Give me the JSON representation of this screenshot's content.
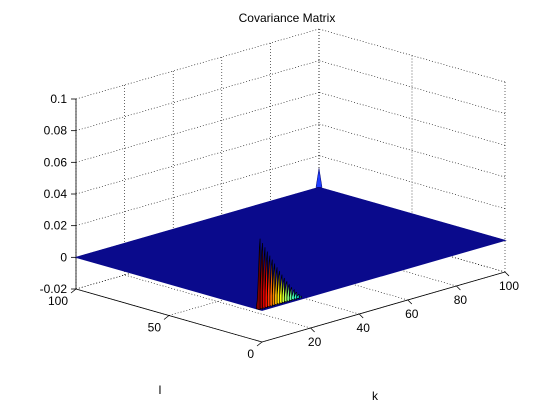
{
  "chart_data": {
    "type": "surface",
    "title": "Covariance Matrix",
    "xlabel": "k",
    "ylabel": "l",
    "zlabel": "",
    "xlim": [
      0,
      100
    ],
    "ylim": [
      0,
      100
    ],
    "zlim": [
      -0.02,
      0.1
    ],
    "x_ticks": [
      "20",
      "40",
      "60",
      "80",
      "100"
    ],
    "x_tick_values": [
      20,
      40,
      60,
      80,
      100
    ],
    "y_ticks": [
      "0",
      "50",
      "100"
    ],
    "y_tick_values": [
      0,
      50,
      100
    ],
    "z_ticks": [
      "-0.02",
      "0",
      "0.02",
      "0.04",
      "0.06",
      "0.08",
      "0.1"
    ],
    "z_tick_values": [
      -0.02,
      0,
      0.02,
      0.04,
      0.06,
      0.08,
      0.1
    ],
    "grid": true,
    "colormap": "jet",
    "base_value": 0,
    "ridge": {
      "description": "covariance concentrated near l = 0 at k ≈ 0..18; peak value ~0.045 at k=l=0",
      "peak_value": 0.045,
      "peak_k": 0,
      "peak_l": 0,
      "extent_k": 18,
      "extent_l": 2
    },
    "secondary_spike": {
      "k": 100,
      "l": 100,
      "value": 0.012
    },
    "colors": {
      "surface_base": "#0a0a8c",
      "edge": "#000000",
      "ridge_high": "#8b0000",
      "ridge_mid": "#ffd000",
      "ridge_low": "#00c8ff"
    }
  }
}
